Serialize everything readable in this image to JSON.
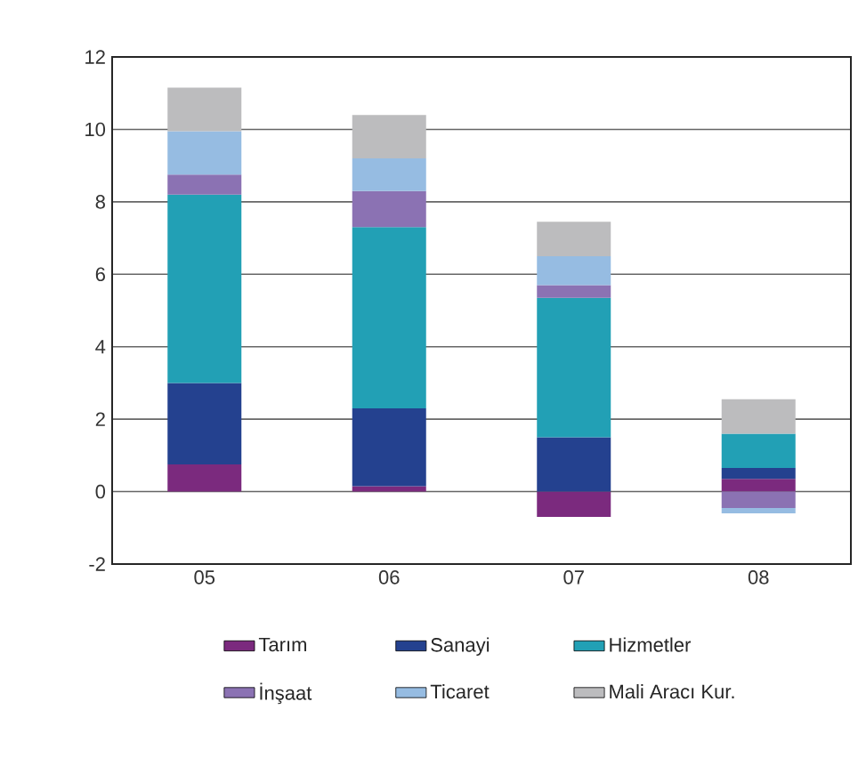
{
  "chart_data": {
    "type": "bar",
    "stacked": true,
    "grid": "y",
    "legend": "bottom",
    "categories": [
      "05",
      "06",
      "07",
      "08"
    ],
    "ylim": [
      -2,
      12
    ],
    "yticks": [
      -2,
      0,
      2,
      4,
      6,
      8,
      10,
      12
    ],
    "series": [
      {
        "name": "Tarım",
        "color": "#7b2a7e",
        "values": [
          0.75,
          0.15,
          -0.7,
          0.35
        ]
      },
      {
        "name": "Sanayi",
        "color": "#24418f",
        "values": [
          2.25,
          2.15,
          1.5,
          0.3
        ]
      },
      {
        "name": "Hizmetler",
        "color": "#22a0b5",
        "values": [
          5.2,
          5.0,
          3.85,
          0.95
        ]
      },
      {
        "name": "İnşaat",
        "color": "#8b72b3",
        "values": [
          0.55,
          1.0,
          0.35,
          -0.45
        ]
      },
      {
        "name": "Ticaret",
        "color": "#96bce2",
        "values": [
          1.2,
          0.9,
          0.8,
          -0.15
        ]
      },
      {
        "name": "Mali Aracı Kur.",
        "color": "#bcbcbe",
        "values": [
          1.2,
          1.2,
          0.95,
          0.95
        ]
      }
    ]
  }
}
